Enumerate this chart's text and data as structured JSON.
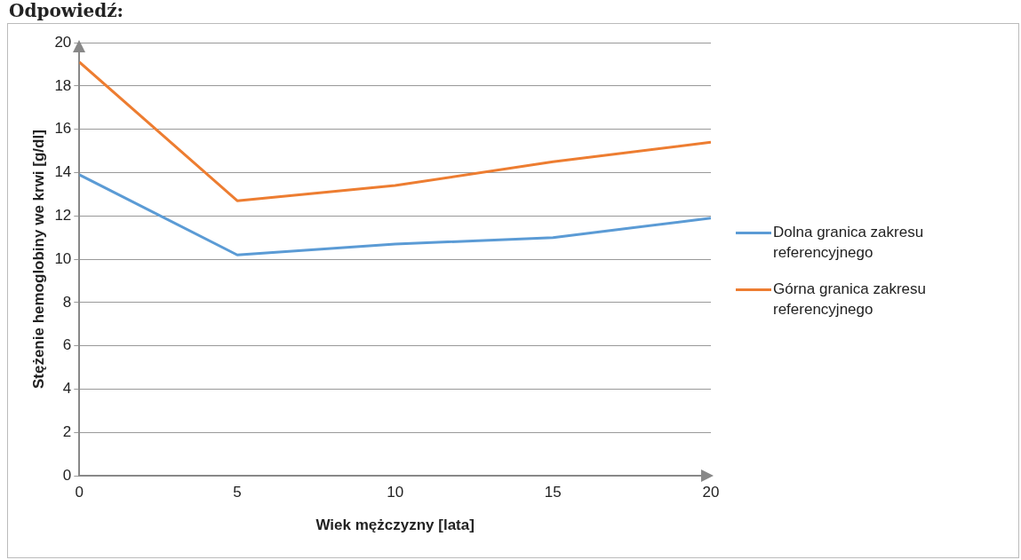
{
  "chart_data": {
    "type": "line",
    "title": "Odpowiedź:",
    "xlabel": "Wiek mężczyzny [lata]",
    "ylabel": "Stężenie hemoglobiny we krwi [g/dl]",
    "x": [
      0,
      5,
      10,
      15,
      20
    ],
    "series": [
      {
        "name": "Dolna granica zakresu referencyjnego",
        "color": "#5b9bd5",
        "values": [
          13.9,
          10.2,
          10.7,
          11.0,
          11.9
        ]
      },
      {
        "name": "Górna granica zakresu referencyjnego",
        "color": "#ed7d31",
        "values": [
          19.1,
          12.7,
          13.4,
          14.5,
          15.4
        ]
      }
    ],
    "xlim": [
      0,
      20
    ],
    "xticks": [
      0,
      5,
      10,
      15,
      20
    ],
    "ylim": [
      0,
      20
    ],
    "yticks": [
      0,
      2,
      4,
      6,
      8,
      10,
      12,
      14,
      16,
      18,
      20
    ],
    "grid": "y",
    "legend": "right",
    "marker": "none",
    "line_style": "solid"
  }
}
